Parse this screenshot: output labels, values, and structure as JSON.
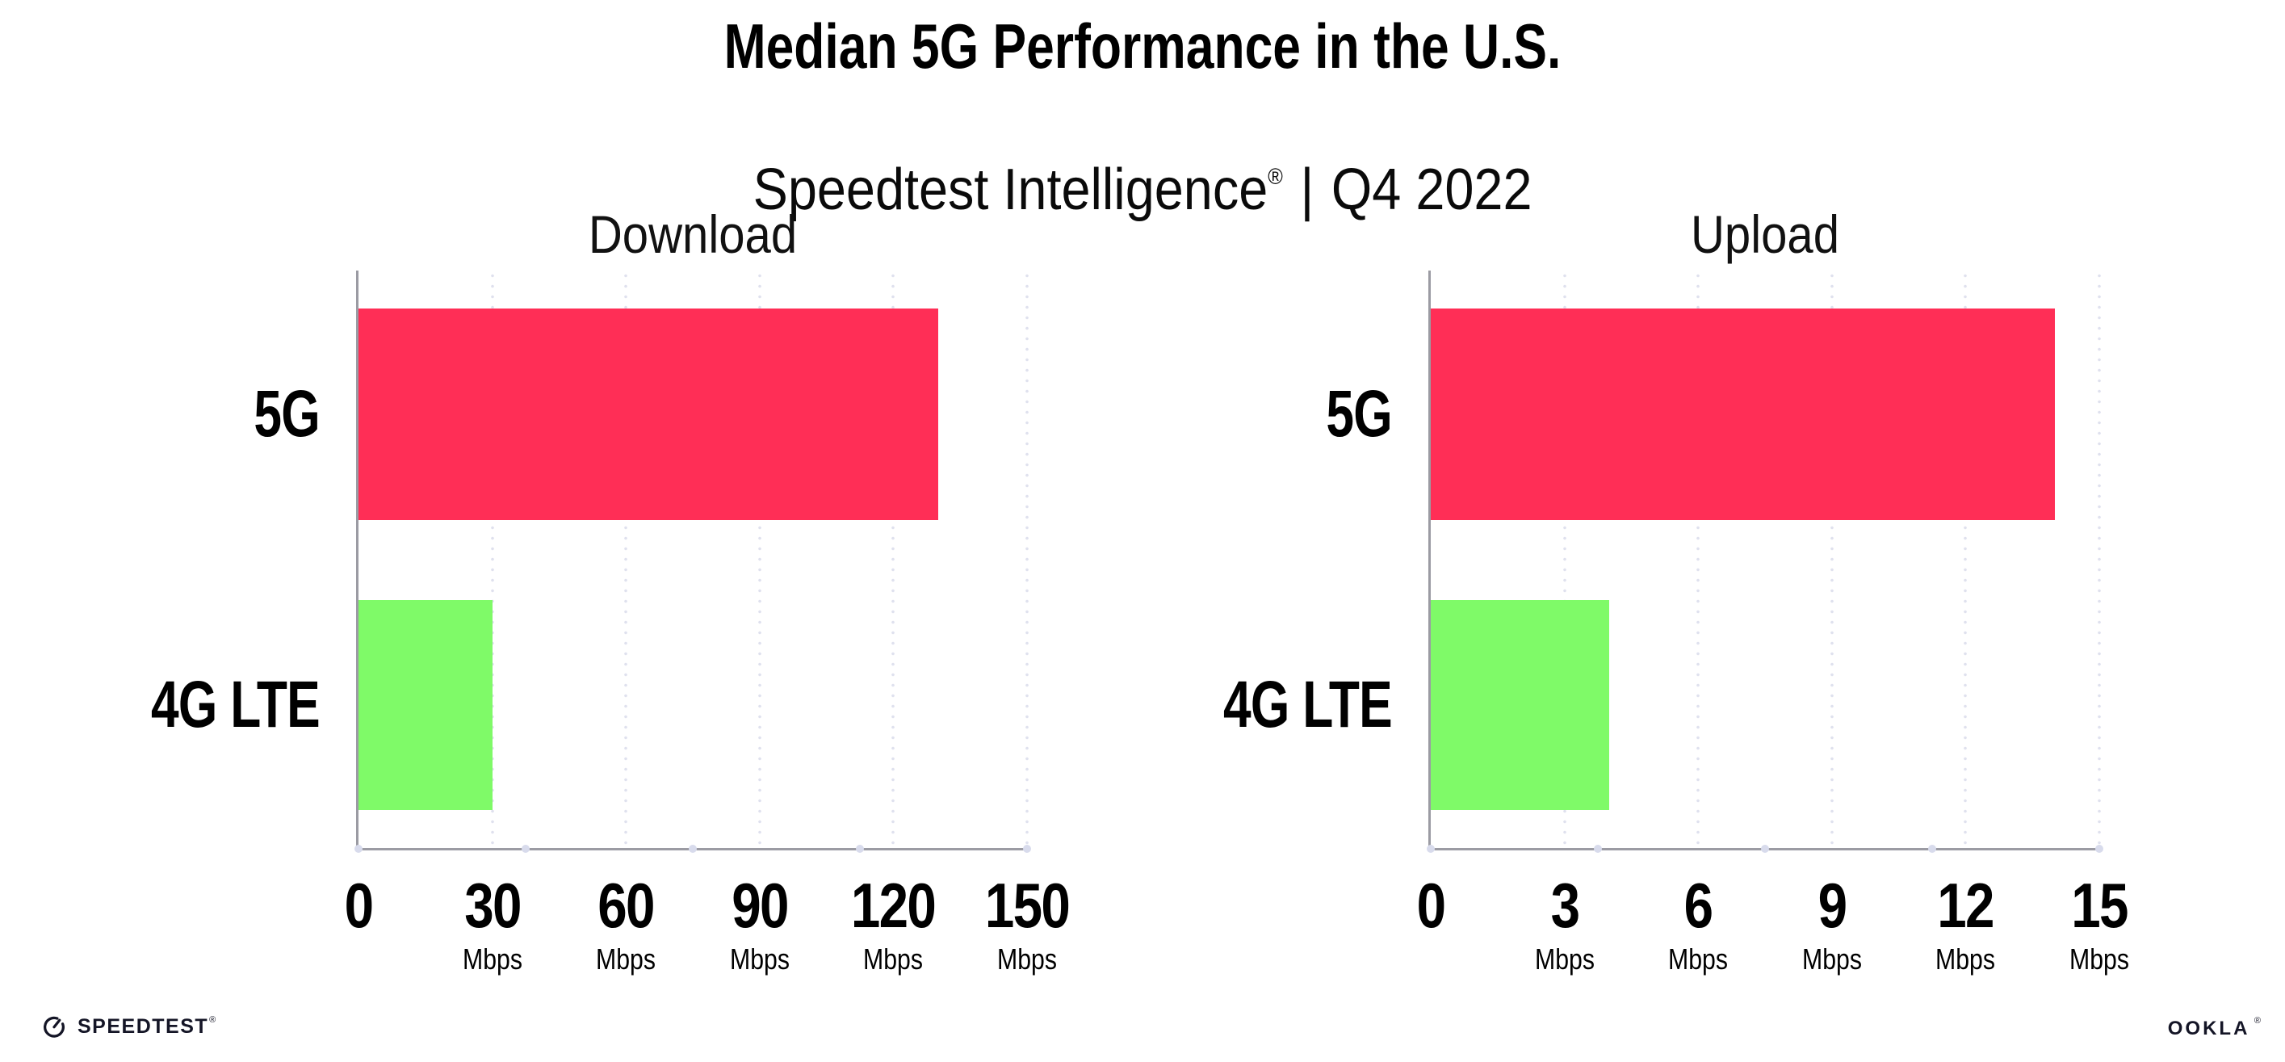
{
  "page": {
    "background": "#ffffff"
  },
  "header": {
    "title": "Median 5G Performance in the U.S.",
    "subtitle_brand": "Speedtest Intelligence",
    "subtitle_reg": "®",
    "subtitle_sep": "|",
    "subtitle_period": "Q4 2022"
  },
  "chart_data": [
    {
      "type": "bar",
      "orientation": "horizontal",
      "title": "Download",
      "categories": [
        "5G",
        "4G LTE"
      ],
      "values": [
        130,
        30
      ],
      "unit": "Mbps",
      "xlim": [
        0,
        150
      ],
      "xticks": [
        0,
        30,
        60,
        90,
        120,
        150
      ],
      "bar_colors": [
        "#ff2e56",
        "#7ffa68"
      ],
      "grid": "dotted-vertical-at-ticks",
      "legend": "none"
    },
    {
      "type": "bar",
      "orientation": "horizontal",
      "title": "Upload",
      "categories": [
        "5G",
        "4G LTE"
      ],
      "values": [
        14,
        4
      ],
      "unit": "Mbps",
      "xlim": [
        0,
        15
      ],
      "xticks": [
        0,
        3,
        6,
        9,
        12,
        15
      ],
      "bar_colors": [
        "#ff2e56",
        "#7ffa68"
      ],
      "grid": "dotted-vertical-at-ticks",
      "legend": "none"
    }
  ],
  "colors": {
    "bar_5g": "#ff2e56",
    "bar_4g_lte": "#7ffa68",
    "axis": "#9b9ba3",
    "grid_dot": "#dfe1ee",
    "logo_ink": "#141526"
  },
  "footer": {
    "speedtest_label": "SPEEDTEST",
    "speedtest_tm": "®",
    "ookla_label": "OOKLA",
    "ookla_reg": "®"
  }
}
